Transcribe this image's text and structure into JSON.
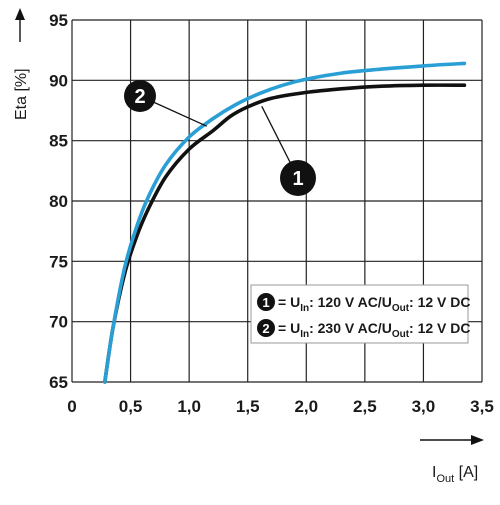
{
  "chart_data": {
    "type": "line",
    "xlabel_main": "I",
    "xlabel_sub": "Out",
    "xlabel_unit": " [A]",
    "ylabel": "Eta [%]",
    "xlim": [
      0,
      3.5
    ],
    "ylim": [
      65,
      95
    ],
    "xticks": [
      0,
      0.5,
      1.0,
      1.5,
      2.0,
      2.5,
      3.0,
      3.5
    ],
    "xtick_labels": [
      "0",
      "0,5",
      "1,0",
      "1,5",
      "2,0",
      "2,5",
      "3,0",
      "3,5"
    ],
    "yticks": [
      65,
      70,
      75,
      80,
      85,
      90,
      95
    ],
    "ytick_labels": [
      "65",
      "70",
      "75",
      "80",
      "85",
      "90",
      "95"
    ],
    "grid": true,
    "legend_position": "bottom-right",
    "series": [
      {
        "name": "1",
        "color": "#111111",
        "legend": {
          "badge": "1",
          "pre": "= U",
          "sub1": "In",
          "mid": ": 120 V AC/U",
          "sub2": "Out",
          "post": ": 12 V DC"
        },
        "x": [
          0.28,
          0.35,
          0.45,
          0.55,
          0.65,
          0.8,
          1.0,
          1.2,
          1.35,
          1.5,
          1.7,
          2.0,
          2.3,
          2.6,
          3.0,
          3.35
        ],
        "y": [
          65.0,
          69.5,
          74.0,
          77.0,
          79.3,
          82.0,
          84.3,
          85.8,
          87.0,
          87.8,
          88.5,
          89.0,
          89.3,
          89.5,
          89.6,
          89.6
        ]
      },
      {
        "name": "2",
        "color": "#2a9fd6",
        "legend": {
          "badge": "2",
          "pre": "= U",
          "sub1": "In",
          "mid": ": 230 V AC/U",
          "sub2": "Out",
          "post": ": 12 V DC"
        },
        "x": [
          0.28,
          0.35,
          0.45,
          0.55,
          0.65,
          0.8,
          1.0,
          1.2,
          1.4,
          1.6,
          1.8,
          2.0,
          2.3,
          2.6,
          3.0,
          3.35
        ],
        "y": [
          65.0,
          69.5,
          74.5,
          77.8,
          80.3,
          83.0,
          85.3,
          86.8,
          88.0,
          88.9,
          89.6,
          90.1,
          90.6,
          90.9,
          91.2,
          91.4
        ]
      }
    ],
    "callouts": [
      {
        "series": "1",
        "label": "1"
      },
      {
        "series": "2",
        "label": "2"
      }
    ]
  }
}
